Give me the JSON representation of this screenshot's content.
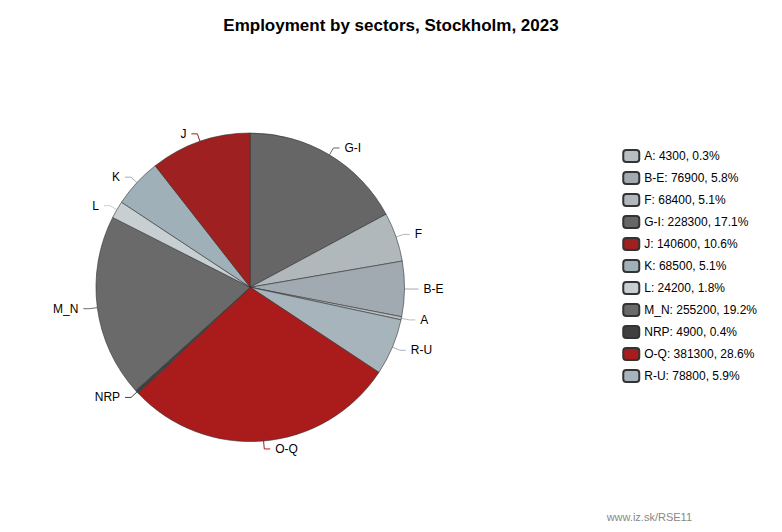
{
  "chart_data": {
    "type": "pie",
    "title": "Employment by sectors, Stockholm, 2023",
    "categories": [
      "G-I",
      "F",
      "B-E",
      "A",
      "R-U",
      "O-Q",
      "NRP",
      "M_N",
      "L",
      "K",
      "J"
    ],
    "values": [
      228300,
      68400,
      76900,
      4300,
      78800,
      381300,
      4900,
      255200,
      24200,
      68500,
      140600
    ],
    "colors": [
      "#666666",
      "#b0b8bc",
      "#a0aab0",
      "#b8bec2",
      "#a8b4bc",
      "#aa1c1c",
      "#404040",
      "#6a6a6a",
      "#c8cfd3",
      "#a0b0b8",
      "#9e2020"
    ],
    "legend": "right",
    "legend_order": [
      "A",
      "B-E",
      "F",
      "G-I",
      "J",
      "K",
      "L",
      "M_N",
      "NRP",
      "O-Q",
      "R-U"
    ],
    "legend_labels": [
      "A: 4300, 0.3%",
      "B-E: 76900, 5.8%",
      "F: 68400, 5.1%",
      "G-I: 228300, 17.1%",
      "J: 140600, 10.6%",
      "K: 68500, 5.1%",
      "L: 24200, 1.8%",
      "M_N: 255200, 19.2%",
      "NRP: 4900, 0.4%",
      "O-Q: 381300, 28.6%",
      "R-U: 78800, 5.9%"
    ],
    "annotations": [
      "www.iz.sk/RSE11"
    ]
  }
}
